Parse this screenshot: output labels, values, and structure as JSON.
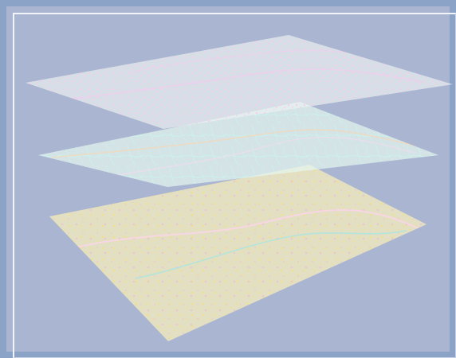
{
  "scene": {
    "background_color": "#aab6d1",
    "frame_color": "#8aa3c6",
    "layers": [
      {
        "id": "top",
        "kind": "points/urban clusters",
        "fill": "#e9f1f0",
        "marks": "#f6c9f0"
      },
      {
        "id": "middle",
        "kind": "road/line network",
        "fill": "#e6f7ef",
        "marks": "#c6f7ef"
      },
      {
        "id": "bottom",
        "kind": "base features",
        "fill": "#f5ecbc",
        "marks_1": "#ffe24a",
        "marks_2": "#f39af2"
      }
    ]
  }
}
